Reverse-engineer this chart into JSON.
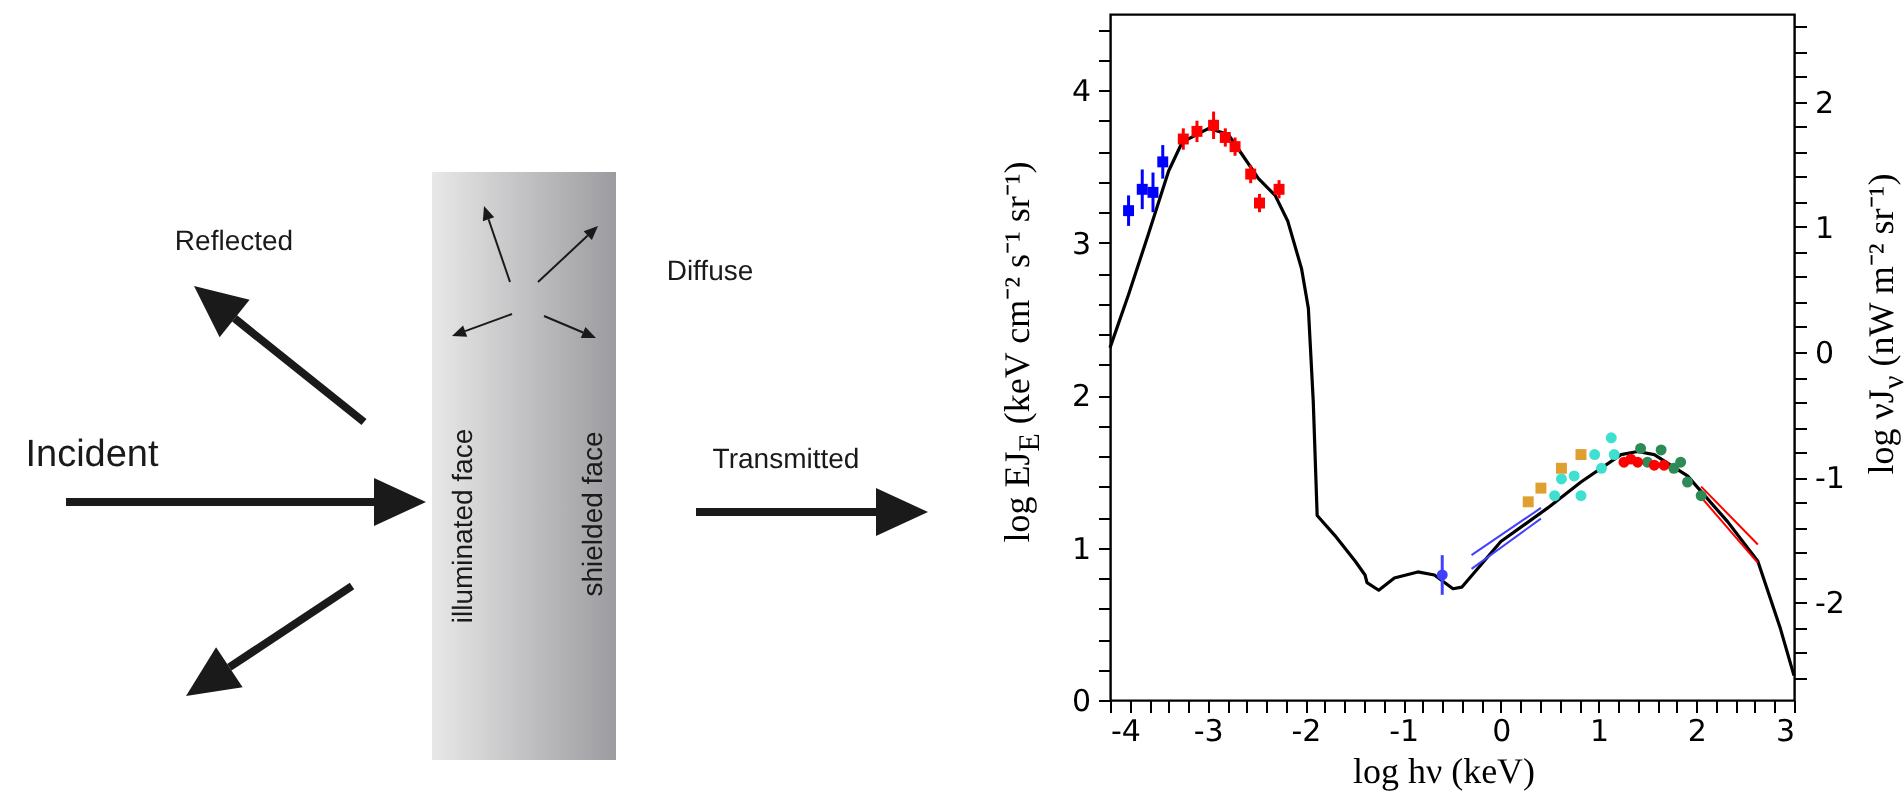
{
  "chart_data": [
    {
      "type": "other",
      "annotations": [
        "Reflected",
        "Diffuse",
        "Incident",
        "Transmitted",
        "illuminated  face",
        "shielded  face"
      ]
    },
    {
      "type": "scatter",
      "xlabel": "log hν  (keV)",
      "ylabel": "log EJ$_{E}$  (keV cm⁻² s⁻¹ sr⁻¹)",
      "y2label": "log νJ$_{ν}$  (nW m⁻² sr⁻¹)",
      "xlim": [
        -4,
        3
      ],
      "ylim": [
        0,
        4.5
      ],
      "y2lim": [
        -2.78,
        2.7
      ],
      "xticks": [
        -4,
        {
          "value": -3.8,
          "label": null
        },
        {
          "value": -3.6,
          "label": null
        },
        {
          "value": -3.4,
          "label": null
        },
        {
          "value": -3.2,
          "label": null
        },
        -3,
        {
          "value": -2.8,
          "label": null
        },
        {
          "value": -2.6,
          "label": null
        },
        {
          "value": -2.4,
          "label": null
        },
        {
          "value": -2.2,
          "label": null
        },
        -2,
        {
          "value": -1.8,
          "label": null
        },
        {
          "value": -1.6,
          "label": null
        },
        {
          "value": -1.4,
          "label": null
        },
        {
          "value": -1.2,
          "label": null
        },
        -1,
        {
          "value": -0.8,
          "label": null
        },
        {
          "value": -0.6,
          "label": null
        },
        {
          "value": -0.4,
          "label": null
        },
        {
          "value": -0.2,
          "label": null
        },
        0,
        {
          "value": 0.2,
          "label": null
        },
        {
          "value": 0.4,
          "label": null
        },
        {
          "value": 0.6,
          "label": null
        },
        {
          "value": 0.8,
          "label": null
        },
        1,
        {
          "value": 1.2,
          "label": null
        },
        {
          "value": 1.4,
          "label": null
        },
        {
          "value": 1.6,
          "label": null
        },
        {
          "value": 1.8,
          "label": null
        },
        2,
        {
          "value": 2.2,
          "label": null
        },
        {
          "value": 2.4,
          "label": null
        },
        {
          "value": 2.6,
          "label": null
        },
        {
          "value": 2.8,
          "label": null
        },
        3
      ],
      "yticks": [
        0,
        {
          "value": 0.2,
          "label": null
        },
        {
          "value": 0.4,
          "label": null
        },
        {
          "value": 0.6,
          "label": null
        },
        {
          "value": 0.8,
          "label": null
        },
        1,
        {
          "value": 1.2,
          "label": null
        },
        {
          "value": 1.4,
          "label": null
        },
        {
          "value": 1.6,
          "label": null
        },
        {
          "value": 1.8,
          "label": null
        },
        2,
        {
          "value": 2.2,
          "label": null
        },
        {
          "value": 2.4,
          "label": null
        },
        {
          "value": 2.6,
          "label": null
        },
        {
          "value": 2.8,
          "label": null
        },
        3,
        {
          "value": 3.2,
          "label": null
        },
        {
          "value": 3.4,
          "label": null
        },
        {
          "value": 3.6,
          "label": null
        },
        {
          "value": 3.8,
          "label": null
        },
        4,
        {
          "value": 4.2,
          "label": null
        },
        {
          "value": 4.4,
          "label": null
        }
      ],
      "y2ticks": [
        {
          "value": -2.6,
          "label": null
        },
        {
          "value": -2.4,
          "label": null
        },
        {
          "value": -2.2,
          "label": null
        },
        -2,
        {
          "value": -1.8,
          "label": null
        },
        {
          "value": -1.6,
          "label": null
        },
        {
          "value": -1.4,
          "label": null
        },
        {
          "value": -1.2,
          "label": null
        },
        -1,
        {
          "value": -0.8,
          "label": null
        },
        {
          "value": -0.6,
          "label": null
        },
        {
          "value": -0.4,
          "label": null
        },
        {
          "value": -0.2,
          "label": null
        },
        0,
        {
          "value": 0.2,
          "label": null
        },
        {
          "value": 0.4,
          "label": null
        },
        {
          "value": 0.6,
          "label": null
        },
        {
          "value": 0.8,
          "label": null
        },
        1,
        {
          "value": 1.2,
          "label": null
        },
        {
          "value": 1.4,
          "label": null
        },
        {
          "value": 1.6,
          "label": null
        },
        {
          "value": 1.8,
          "label": null
        },
        2,
        {
          "value": 2.2,
          "label": null
        },
        {
          "value": 2.4,
          "label": null
        },
        {
          "value": 2.6,
          "label": null
        }
      ],
      "series": [
        {
          "type": "line",
          "color": "#000000",
          "x": [
            -4,
            -3.81,
            -3.61,
            -3.4,
            -3.26,
            -2.99,
            -2.79,
            -2.65,
            -2.48,
            -2.31,
            -2.18,
            -2.04,
            -1.97,
            -1.92,
            -1.88,
            -1.7,
            -1.49,
            -1.39,
            -1.37,
            -1.25,
            -1.09,
            -0.85,
            -0.68,
            -0.49,
            -0.4,
            0,
            0.48,
            0.82,
            1.23,
            1.4,
            1.57,
            1.91,
            2.32,
            2.63,
            2.86,
            3
          ],
          "values": [
            2.31,
            2.66,
            3.05,
            3.47,
            3.66,
            3.75,
            3.71,
            3.58,
            3.42,
            3.31,
            3.14,
            2.83,
            2.57,
            1.96,
            1.21,
            1.08,
            0.91,
            0.82,
            0.77,
            0.72,
            0.8,
            0.84,
            0.82,
            0.73,
            0.74,
            1.04,
            1.26,
            1.43,
            1.61,
            1.63,
            1.61,
            1.47,
            1.17,
            0.91,
            0.47,
            0.16
          ]
        },
        {
          "type": "scatter",
          "color": "#0000ff",
          "marker": "square",
          "x": [
            -3.81,
            -3.67,
            -3.56,
            -3.46
          ],
          "values": [
            3.21,
            3.35,
            3.33,
            3.53
          ],
          "errors": [
            0.1,
            0.13,
            0.13,
            0.11
          ]
        },
        {
          "type": "scatter",
          "color": "#ff0000",
          "marker": "square",
          "x": [
            -3.25,
            -3.11,
            -2.94,
            -2.82,
            -2.72,
            -2.56,
            -2.47,
            -2.27
          ],
          "values": [
            3.68,
            3.73,
            3.77,
            3.69,
            3.63,
            3.45,
            3.26,
            3.35
          ],
          "errors": [
            0.07,
            0.07,
            0.09,
            0.06,
            0.06,
            0.06,
            0.06,
            0.06
          ]
        },
        {
          "type": "scatter",
          "color": "#4040ff",
          "marker": "circle",
          "x": [
            -0.6
          ],
          "values": [
            0.82
          ],
          "errors": [
            0.13
          ]
        },
        {
          "type": "line",
          "color": "#4040ff",
          "x": [
            -0.3,
            0.41
          ],
          "values": [
            0.95,
            1.26
          ]
        },
        {
          "type": "line",
          "color": "#4040ff",
          "x": [
            -0.3,
            0.41
          ],
          "values": [
            0.86,
            1.19
          ]
        },
        {
          "type": "line",
          "color": "#ff0000",
          "x": [
            2.05,
            2.63
          ],
          "values": [
            1.4,
            1.02
          ]
        },
        {
          "type": "line",
          "color": "#ff0000",
          "x": [
            2.05,
            2.63
          ],
          "values": [
            1.33,
            0.9
          ]
        },
        {
          "type": "scatter",
          "color": "#e0a030",
          "marker": "square",
          "x": [
            0.28,
            0.41,
            0.62,
            0.82
          ],
          "values": [
            1.3,
            1.39,
            1.52,
            1.61
          ]
        },
        {
          "type": "scatter",
          "color": "#40e0d0",
          "marker": "circle",
          "x": [
            0.55,
            0.62,
            0.75,
            0.82,
            0.96,
            1.03,
            1.13,
            1.16
          ],
          "values": [
            1.34,
            1.45,
            1.47,
            1.34,
            1.61,
            1.52,
            1.72,
            1.61
          ]
        },
        {
          "type": "scatter",
          "color": "#2e8b57",
          "marker": "circle",
          "x": [
            1.43,
            1.5,
            1.64,
            1.77,
            1.84,
            1.91,
            2.05
          ],
          "values": [
            1.65,
            1.56,
            1.64,
            1.52,
            1.56,
            1.43,
            1.34
          ]
        },
        {
          "type": "scatter",
          "color": "#ff0000",
          "marker": "circle",
          "x": [
            1.26,
            1.33,
            1.4,
            1.57,
            1.67
          ],
          "values": [
            1.56,
            1.58,
            1.56,
            1.54,
            1.54
          ]
        }
      ]
    }
  ]
}
